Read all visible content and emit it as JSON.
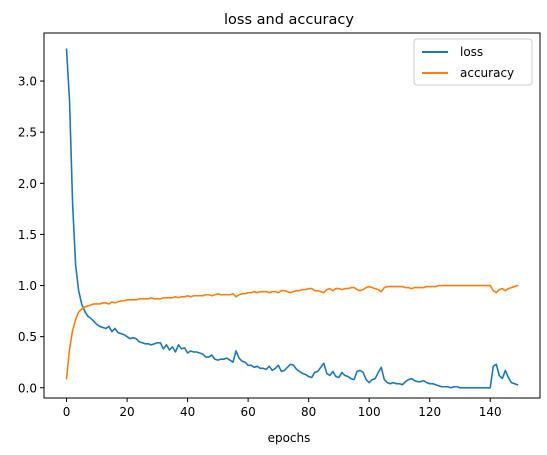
{
  "chart_data": {
    "type": "line",
    "title": "loss and accuracy",
    "xlabel": "epochs",
    "ylabel": "",
    "xlim": [
      -7.45,
      156.45
    ],
    "ylim": [
      -0.1,
      3.47
    ],
    "xticks": [
      0,
      20,
      40,
      60,
      80,
      100,
      120,
      140
    ],
    "xtick_labels": [
      "0",
      "20",
      "40",
      "60",
      "80",
      "100",
      "120",
      "140"
    ],
    "yticks": [
      0.0,
      0.5,
      1.0,
      1.5,
      2.0,
      2.5,
      3.0
    ],
    "ytick_labels": [
      "0.0",
      "0.5",
      "1.0",
      "1.5",
      "2.0",
      "2.5",
      "3.0"
    ],
    "grid": false,
    "legend": "top-right",
    "series": [
      {
        "name": "loss",
        "color": "#1f77b4",
        "x": [
          0,
          1,
          2,
          3,
          4,
          5,
          6,
          7,
          8,
          9,
          10,
          11,
          12,
          13,
          14,
          15,
          16,
          17,
          18,
          19,
          20,
          21,
          22,
          23,
          24,
          25,
          26,
          27,
          28,
          29,
          30,
          31,
          32,
          33,
          34,
          35,
          36,
          37,
          38,
          39,
          40,
          41,
          42,
          43,
          44,
          45,
          46,
          47,
          48,
          49,
          50,
          51,
          52,
          53,
          54,
          55,
          56,
          57,
          58,
          59,
          60,
          61,
          62,
          63,
          64,
          65,
          66,
          67,
          68,
          69,
          70,
          71,
          72,
          73,
          74,
          75,
          76,
          77,
          78,
          79,
          80,
          81,
          82,
          83,
          84,
          85,
          86,
          87,
          88,
          89,
          90,
          91,
          92,
          93,
          94,
          95,
          96,
          97,
          98,
          99,
          100,
          101,
          102,
          103,
          104,
          105,
          106,
          107,
          108,
          109,
          110,
          111,
          112,
          113,
          114,
          115,
          116,
          117,
          118,
          119,
          120,
          121,
          122,
          123,
          124,
          125,
          126,
          127,
          128,
          129,
          130,
          131,
          132,
          133,
          134,
          135,
          136,
          137,
          138,
          139,
          140,
          141,
          142,
          143,
          144,
          145,
          146,
          147,
          148,
          149
        ],
        "y": [
          3.31,
          2.8,
          1.8,
          1.2,
          0.95,
          0.82,
          0.75,
          0.7,
          0.68,
          0.65,
          0.62,
          0.6,
          0.59,
          0.58,
          0.6,
          0.55,
          0.58,
          0.54,
          0.53,
          0.52,
          0.5,
          0.48,
          0.49,
          0.48,
          0.45,
          0.44,
          0.43,
          0.43,
          0.42,
          0.43,
          0.44,
          0.44,
          0.38,
          0.42,
          0.37,
          0.4,
          0.35,
          0.42,
          0.38,
          0.39,
          0.34,
          0.36,
          0.35,
          0.35,
          0.34,
          0.33,
          0.3,
          0.3,
          0.32,
          0.28,
          0.27,
          0.28,
          0.28,
          0.29,
          0.27,
          0.25,
          0.36,
          0.29,
          0.26,
          0.25,
          0.22,
          0.22,
          0.2,
          0.21,
          0.19,
          0.19,
          0.18,
          0.21,
          0.17,
          0.19,
          0.22,
          0.16,
          0.17,
          0.2,
          0.23,
          0.22,
          0.18,
          0.16,
          0.14,
          0.13,
          0.11,
          0.1,
          0.15,
          0.16,
          0.2,
          0.24,
          0.14,
          0.12,
          0.16,
          0.11,
          0.1,
          0.15,
          0.12,
          0.11,
          0.09,
          0.08,
          0.16,
          0.17,
          0.15,
          0.08,
          0.05,
          0.08,
          0.09,
          0.15,
          0.2,
          0.08,
          0.05,
          0.04,
          0.05,
          0.04,
          0.04,
          0.03,
          0.06,
          0.08,
          0.09,
          0.07,
          0.06,
          0.06,
          0.07,
          0.05,
          0.04,
          0.04,
          0.03,
          0.02,
          0.01,
          0.01,
          0.01,
          0.0,
          0.01,
          0.01,
          0.0,
          0.0,
          0.0,
          0.0,
          0.0,
          0.0,
          0.0,
          0.0,
          0.0,
          0.0,
          0.0,
          0.21,
          0.23,
          0.12,
          0.09,
          0.17,
          0.1,
          0.05,
          0.04,
          0.03
        ]
      },
      {
        "name": "accuracy",
        "color": "#ff7f0e",
        "x": [
          0,
          1,
          2,
          3,
          4,
          5,
          6,
          7,
          8,
          9,
          10,
          11,
          12,
          13,
          14,
          15,
          16,
          17,
          18,
          19,
          20,
          21,
          22,
          23,
          24,
          25,
          26,
          27,
          28,
          29,
          30,
          31,
          32,
          33,
          34,
          35,
          36,
          37,
          38,
          39,
          40,
          41,
          42,
          43,
          44,
          45,
          46,
          47,
          48,
          49,
          50,
          51,
          52,
          53,
          54,
          55,
          56,
          57,
          58,
          59,
          60,
          61,
          62,
          63,
          64,
          65,
          66,
          67,
          68,
          69,
          70,
          71,
          72,
          73,
          74,
          75,
          76,
          77,
          78,
          79,
          80,
          81,
          82,
          83,
          84,
          85,
          86,
          87,
          88,
          89,
          90,
          91,
          92,
          93,
          94,
          95,
          96,
          97,
          98,
          99,
          100,
          101,
          102,
          103,
          104,
          105,
          106,
          107,
          108,
          109,
          110,
          111,
          112,
          113,
          114,
          115,
          116,
          117,
          118,
          119,
          120,
          121,
          122,
          123,
          124,
          125,
          126,
          127,
          128,
          129,
          130,
          131,
          132,
          133,
          134,
          135,
          136,
          137,
          138,
          139,
          140,
          141,
          142,
          143,
          144,
          145,
          146,
          147,
          148,
          149
        ],
        "y": [
          0.09,
          0.38,
          0.56,
          0.67,
          0.74,
          0.77,
          0.79,
          0.8,
          0.81,
          0.82,
          0.82,
          0.82,
          0.83,
          0.83,
          0.82,
          0.84,
          0.83,
          0.84,
          0.85,
          0.85,
          0.86,
          0.86,
          0.86,
          0.86,
          0.87,
          0.87,
          0.87,
          0.87,
          0.88,
          0.87,
          0.87,
          0.87,
          0.88,
          0.88,
          0.88,
          0.88,
          0.89,
          0.88,
          0.89,
          0.89,
          0.9,
          0.89,
          0.9,
          0.9,
          0.9,
          0.9,
          0.91,
          0.91,
          0.9,
          0.91,
          0.92,
          0.91,
          0.91,
          0.91,
          0.91,
          0.92,
          0.89,
          0.91,
          0.92,
          0.92,
          0.93,
          0.93,
          0.94,
          0.93,
          0.94,
          0.94,
          0.94,
          0.93,
          0.94,
          0.94,
          0.93,
          0.95,
          0.95,
          0.94,
          0.93,
          0.94,
          0.95,
          0.95,
          0.96,
          0.96,
          0.97,
          0.97,
          0.95,
          0.95,
          0.94,
          0.93,
          0.96,
          0.97,
          0.95,
          0.97,
          0.97,
          0.96,
          0.97,
          0.97,
          0.98,
          0.98,
          0.96,
          0.95,
          0.96,
          0.98,
          0.99,
          0.98,
          0.97,
          0.96,
          0.94,
          0.98,
          0.99,
          0.99,
          0.99,
          0.99,
          0.99,
          0.99,
          0.98,
          0.98,
          0.97,
          0.98,
          0.98,
          0.98,
          0.98,
          0.99,
          0.99,
          0.99,
          0.99,
          1.0,
          1.0,
          1.0,
          1.0,
          1.0,
          1.0,
          1.0,
          1.0,
          1.0,
          1.0,
          1.0,
          1.0,
          1.0,
          1.0,
          1.0,
          1.0,
          1.0,
          1.0,
          0.95,
          0.93,
          0.96,
          0.97,
          0.95,
          0.97,
          0.98,
          0.99,
          1.0
        ]
      }
    ]
  }
}
